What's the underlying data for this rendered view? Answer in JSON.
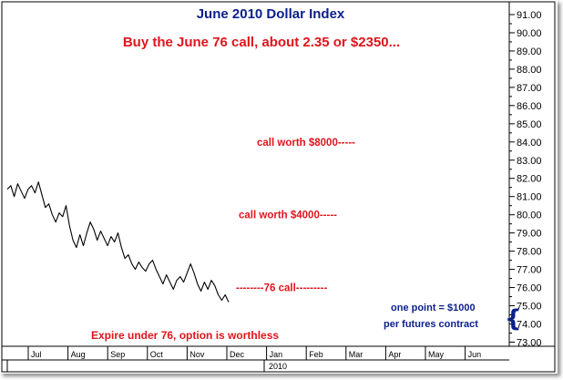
{
  "chart_data": {
    "type": "line",
    "title": "June 2010 Dollar Index",
    "subtitle": "Buy the June 76 call, about 2.35 or $2350...",
    "y_tick_labels": [
      "91.00",
      "90.00",
      "89.00",
      "88.00",
      "87.00",
      "86.00",
      "85.00",
      "84.00",
      "83.00",
      "82.00",
      "81.00",
      "80.00",
      "79.00",
      "78.00",
      "77.00",
      "76.00",
      "75.00",
      "74.00",
      "73.00"
    ],
    "ylim": [
      72.5,
      91.5
    ],
    "x_tick_labels": [
      "Jul",
      "Aug",
      "Sep",
      "Oct",
      "Nov",
      "Dec",
      "Jan",
      "Feb",
      "Mar",
      "Apr",
      "May",
      "Jun"
    ],
    "x_year_label": "2010",
    "grid": false,
    "series": [
      {
        "values": [
          81.4,
          81.6,
          81.0,
          81.7,
          81.3,
          80.9,
          81.4,
          81.6,
          81.2,
          81.8,
          81.1,
          80.4,
          80.6,
          80.0,
          79.6,
          80.1,
          79.9,
          80.5,
          79.4,
          78.6,
          78.2,
          78.9,
          78.3,
          79.0,
          79.6,
          79.2,
          78.6,
          79.1,
          78.7,
          78.3,
          78.8,
          78.5,
          79.0,
          78.2,
          77.6,
          77.8,
          77.3,
          77.0,
          77.4,
          77.1,
          76.9,
          77.3,
          77.5,
          77.0,
          76.6,
          76.2,
          76.7,
          76.3,
          75.9,
          76.4,
          76.6,
          76.3,
          76.8,
          77.3,
          76.8,
          76.2,
          75.8,
          76.3,
          75.9,
          76.4,
          76.1,
          75.6,
          75.3,
          75.6,
          75.2
        ]
      }
    ],
    "annotations": [
      {
        "text": "call worth $8000-----",
        "value": 84.0
      },
      {
        "text": "call worth $4000-----",
        "value": 80.0
      },
      {
        "text": "--------76 call---------",
        "value": 76.0
      },
      {
        "text": "Expire under 76, option is worthless"
      },
      {
        "text": "one point = $1000"
      },
      {
        "text": "per futures contract"
      },
      {
        "text": "{"
      }
    ]
  }
}
